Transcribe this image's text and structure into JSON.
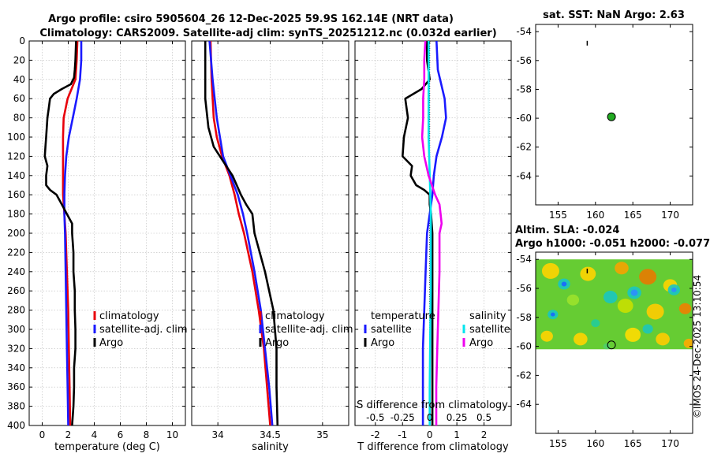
{
  "title_line1": "Argo profile: csiro 5905604_26 12-Dec-2025 59.9S 162.14E (NRT data)",
  "title_line2": "Climatology: CARS2009. Satellite-adj clim: synTS_20251212.nc (0.032d earlier)",
  "side_label": "©IMOS 24-Dec-2025 13:10:54",
  "colors": {
    "climatology": "#e8000b",
    "satellite": "#1a1aff",
    "argo": "#000000",
    "sat_salinity": "#00e5ee",
    "argo_salinity": "#ee00ee"
  },
  "chart_data": [
    {
      "type": "line",
      "name": "temperature",
      "xlabel": "temperature (deg C)",
      "xlim": [
        -1,
        11
      ],
      "ylim": [
        0,
        400
      ],
      "xticks": [
        "0",
        "2",
        "4",
        "6",
        "8",
        "10"
      ],
      "yticks": [
        "0",
        "20",
        "40",
        "60",
        "80",
        "100",
        "120",
        "140",
        "160",
        "180",
        "200",
        "220",
        "240",
        "260",
        "280",
        "300",
        "320",
        "340",
        "360",
        "380",
        "400"
      ],
      "legend": [
        "climatology",
        "satellite-adj. clim",
        "Argo"
      ],
      "series": [
        {
          "name": "climatology",
          "depth": [
            0,
            20,
            40,
            60,
            80,
            100,
            120,
            140,
            160,
            180,
            200,
            240,
            280,
            320,
            360,
            400
          ],
          "values": [
            2.7,
            2.65,
            2.55,
            1.95,
            1.65,
            1.6,
            1.6,
            1.6,
            1.6,
            1.7,
            1.8,
            1.9,
            2.0,
            2.05,
            2.1,
            2.15
          ]
        },
        {
          "name": "satellite-adj. clim",
          "depth": [
            0,
            20,
            40,
            60,
            80,
            100,
            120,
            140,
            160,
            180,
            200,
            240,
            280,
            320,
            360,
            400
          ],
          "values": [
            3.0,
            3.0,
            2.9,
            2.65,
            2.35,
            2.05,
            1.85,
            1.75,
            1.7,
            1.7,
            1.75,
            1.8,
            1.85,
            1.9,
            1.95,
            2.0
          ]
        },
        {
          "name": "Argo",
          "depth": [
            0,
            20,
            30,
            38,
            45,
            50,
            55,
            60,
            70,
            80,
            90,
            100,
            110,
            120,
            130,
            140,
            150,
            155,
            160,
            170,
            180,
            190,
            200,
            220,
            240,
            260,
            280,
            300,
            320,
            340,
            360,
            380,
            400
          ],
          "values": [
            2.6,
            2.55,
            2.5,
            2.45,
            2.2,
            1.5,
            0.9,
            0.6,
            0.5,
            0.4,
            0.35,
            0.3,
            0.25,
            0.2,
            0.4,
            0.3,
            0.3,
            0.6,
            1.1,
            1.5,
            1.9,
            2.3,
            2.3,
            2.4,
            2.4,
            2.5,
            2.5,
            2.55,
            2.55,
            2.45,
            2.45,
            2.4,
            2.3
          ]
        }
      ]
    },
    {
      "type": "line",
      "name": "salinity",
      "xlabel": "salinity",
      "xlim": [
        33.75,
        35.25
      ],
      "ylim": [
        0,
        400
      ],
      "xticks": [
        "34",
        "34.5",
        "35"
      ],
      "legend": [
        "climatology",
        "satellite-adj. clim",
        "Argo"
      ],
      "series": [
        {
          "name": "climatology",
          "depth": [
            0,
            40,
            80,
            100,
            120,
            140,
            160,
            180,
            200,
            240,
            280,
            320,
            360,
            400
          ],
          "values": [
            33.93,
            33.94,
            33.96,
            33.99,
            34.04,
            34.11,
            34.16,
            34.2,
            34.25,
            34.33,
            34.39,
            34.44,
            34.47,
            34.5
          ]
        },
        {
          "name": "satellite-adj. clim",
          "depth": [
            0,
            40,
            80,
            100,
            120,
            140,
            160,
            180,
            200,
            240,
            280,
            320,
            360,
            400
          ],
          "values": [
            33.92,
            33.95,
            33.99,
            34.02,
            34.05,
            34.12,
            34.19,
            34.24,
            34.28,
            34.35,
            34.41,
            34.45,
            34.49,
            34.52
          ]
        },
        {
          "name": "Argo",
          "depth": [
            0,
            30,
            60,
            90,
            110,
            120,
            140,
            160,
            170,
            180,
            200,
            240,
            280,
            320,
            360,
            400
          ],
          "values": [
            33.88,
            33.88,
            33.88,
            33.91,
            33.96,
            34.02,
            34.14,
            34.22,
            34.27,
            34.33,
            34.35,
            34.45,
            34.53,
            34.56,
            34.56,
            34.57
          ]
        }
      ]
    },
    {
      "type": "line",
      "name": "differences",
      "xlabel": "T difference from climatology",
      "xlabel_top": "S difference from climatology",
      "xlim": [
        -2.75,
        3.0
      ],
      "ylim": [
        0,
        400
      ],
      "xticks": [
        "-2",
        "-1",
        "0",
        "1",
        "2"
      ],
      "xticks_top": [
        "-0.5",
        "-0.25",
        "0",
        "0.25",
        "0.5"
      ],
      "legend_temperature_title": "temperature",
      "legend_salinity_title": "salinity",
      "legend_temperature": [
        "satellite",
        "Argo"
      ],
      "legend_salinity": [
        "satellite",
        "Argo"
      ],
      "series": [
        {
          "name": "T satellite",
          "depth": [
            0,
            30,
            60,
            80,
            100,
            120,
            140,
            160,
            180,
            200,
            240,
            280,
            320,
            360,
            400
          ],
          "values": [
            0.25,
            0.3,
            0.55,
            0.6,
            0.45,
            0.25,
            0.15,
            0.1,
            0.0,
            -0.1,
            -0.15,
            -0.2,
            -0.25,
            -0.25,
            -0.25
          ]
        },
        {
          "name": "T Argo",
          "depth": [
            0,
            20,
            30,
            40,
            50,
            60,
            80,
            100,
            120,
            130,
            140,
            150,
            155,
            160,
            170,
            180,
            200,
            240,
            280,
            320,
            360,
            400
          ],
          "values": [
            -0.1,
            -0.1,
            -0.05,
            0.0,
            -0.3,
            -0.9,
            -0.8,
            -0.95,
            -1.0,
            -0.65,
            -0.7,
            -0.5,
            -0.2,
            0.0,
            0.0,
            0.05,
            0.1,
            0.1,
            0.1,
            0.1,
            0.1,
            0.1
          ]
        },
        {
          "name": "S satellite",
          "depth": [
            0,
            40,
            100,
            140,
            180,
            200,
            260,
            300,
            360,
            400
          ],
          "values": [
            -0.01,
            -0.01,
            -0.01,
            0.0,
            0.01,
            0.01,
            0.01,
            0.005,
            0.0,
            0.0
          ]
        },
        {
          "name": "S Argo",
          "depth": [
            0,
            20,
            40,
            60,
            80,
            100,
            120,
            140,
            160,
            170,
            180,
            190,
            200,
            240,
            280,
            320,
            360,
            400
          ],
          "values": [
            -0.04,
            -0.05,
            -0.05,
            -0.06,
            -0.06,
            -0.07,
            -0.05,
            -0.01,
            0.05,
            0.09,
            0.1,
            0.11,
            0.09,
            0.09,
            0.08,
            0.07,
            0.06,
            0.06
          ]
        }
      ]
    },
    {
      "type": "scatter",
      "name": "sst-map",
      "title": "sat. SST: NaN Argo: 2.63",
      "xlim": [
        152,
        173
      ],
      "ylim": [
        -66,
        -53.5
      ],
      "xticks": [
        "155",
        "160",
        "165",
        "170"
      ],
      "yticks": [
        "-54",
        "-56",
        "-58",
        "-60",
        "-62",
        "-64"
      ],
      "points": [
        {
          "lon": 162.14,
          "lat": -59.9,
          "color": "#22aa22"
        },
        {
          "lon": 158.9,
          "lat": -54.8,
          "color": "#000000"
        }
      ]
    },
    {
      "type": "heatmap",
      "name": "sla-map",
      "title_line1": "Altim. SLA: -0.024",
      "title_line2": "Argo h1000: -0.051 h2000: -0.077",
      "xlim": [
        152,
        173
      ],
      "ylim": [
        -66,
        -53.5
      ],
      "data_lat_range": [
        -60.2,
        -54
      ],
      "xticks": [
        "155",
        "160",
        "165",
        "170"
      ],
      "yticks": [
        "-54",
        "-56",
        "-58",
        "-60",
        "-62",
        "-64"
      ],
      "points": [
        {
          "lon": 162.14,
          "lat": -59.9,
          "color": "none"
        },
        {
          "lon": 158.9,
          "lat": -54.8,
          "color": "#000000"
        }
      ]
    }
  ]
}
